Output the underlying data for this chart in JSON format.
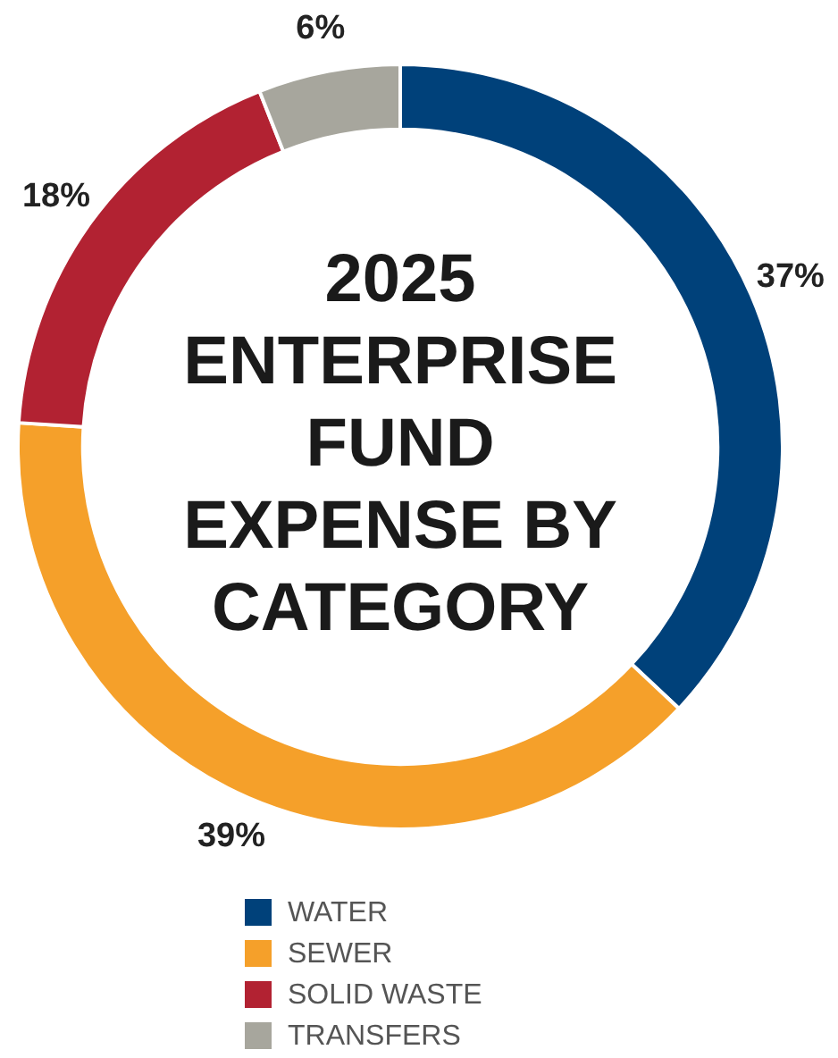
{
  "chart_data": {
    "type": "donut",
    "title": "2025 ENTERPRISE FUND EXPENSE BY CATEGORY",
    "categories": [
      "WATER",
      "SEWER",
      "SOLID WASTE",
      "TRANSFERS"
    ],
    "values": [
      37,
      39,
      18,
      6
    ],
    "colors": [
      "#00417a",
      "#f5a02a",
      "#b22232",
      "#a7a69d"
    ],
    "value_labels": [
      "37%",
      "39%",
      "18%",
      "6%"
    ],
    "legend": "bottom"
  }
}
